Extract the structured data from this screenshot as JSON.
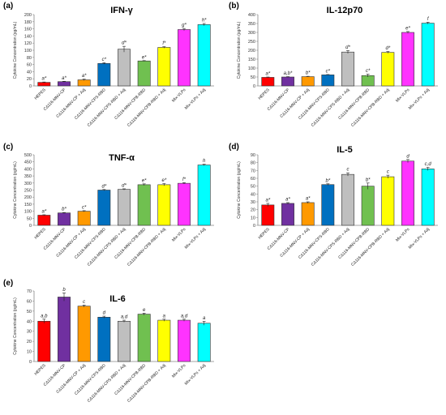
{
  "colors": [
    "#ff0000",
    "#7030a0",
    "#ff9900",
    "#0070c0",
    "#bfbfbf",
    "#70c050",
    "#ffff00",
    "#ff33ff",
    "#00ffff"
  ],
  "chart_data": [
    {
      "panel": "(a)",
      "title": "IFN-γ",
      "type": "bar",
      "ylabel": "Cytokine Concentration (pg/mL)",
      "ylim": [
        0,
        200
      ],
      "ticks": [
        0,
        20,
        40,
        60,
        80,
        100,
        120,
        140,
        160,
        180,
        200
      ],
      "categories": [
        "HEPES",
        "CΔ116-MNV-CP",
        "CΔ116-MNV-CP + Adj",
        "CΔ116-MNV-CPS-RBD",
        "CΔ116-MNV-CPS-RBD + Adj",
        "CΔ116-MNV-CPB-RBD",
        "CΔ116-MNV-CPB-RBD + Adj",
        "Mix-VLPs",
        "Mix-VLPs + Adj"
      ],
      "values": [
        10,
        12,
        17,
        63,
        103,
        70,
        108,
        158,
        172
      ],
      "errors": [
        1,
        1,
        2,
        2,
        8,
        1,
        2,
        3,
        3
      ],
      "letters": [
        "a*",
        "a*",
        "a*",
        "c*",
        "d*",
        "e*",
        "f*",
        "g*",
        "h*"
      ]
    },
    {
      "panel": "(b)",
      "title": "IL-12p70",
      "type": "bar",
      "ylabel": "Cytokine Concentration (pg/mL)",
      "ylim": [
        0,
        400
      ],
      "ticks": [
        0,
        50,
        100,
        150,
        200,
        250,
        300,
        350,
        400
      ],
      "categories": [
        "HEPES",
        "CΔ116-MNV-CP",
        "CΔ116-MNV-CP + Adj",
        "CΔ116-MNV-CPS-RBD",
        "CΔ116-MNV-CPS-RBD + Adj",
        "CΔ116-MNV-CPB-RBD",
        "CΔ116-MNV-CPB-RBD + Adj",
        "Mix-VLPs",
        "Mix-VLPs + Adj"
      ],
      "values": [
        48,
        50,
        52,
        62,
        190,
        58,
        188,
        300,
        352
      ],
      "errors": [
        2,
        2,
        2,
        2,
        8,
        8,
        5,
        5,
        5
      ],
      "letters": [
        "a*",
        "a,b*",
        "b*",
        "c*",
        "d*",
        "c*",
        "d*",
        "e*",
        "f"
      ]
    },
    {
      "panel": "(c)",
      "title": "TNF-α",
      "type": "bar",
      "ylabel": "Cytokine Concentration (pg/mL)",
      "ylim": [
        0,
        500
      ],
      "ticks": [
        0,
        50,
        100,
        150,
        200,
        250,
        300,
        350,
        400,
        450,
        500
      ],
      "categories": [
        "HEPES",
        "CΔ116-MNV-CP",
        "CΔ116-MNV-CP + Adj",
        "CΔ116-MNV-CPS-RBD",
        "CΔ116-MNV-CPS-RBD + Adj",
        "CΔ116-MNV-CPB-RBD",
        "CΔ116-MNV-CPB-RBD + Adj",
        "Mix-VLPs",
        "Mix-VLPs + Adj"
      ],
      "values": [
        72,
        88,
        100,
        250,
        255,
        288,
        288,
        298,
        428
      ],
      "errors": [
        3,
        3,
        4,
        4,
        4,
        6,
        8,
        5,
        5
      ],
      "letters": [
        "a*",
        "b*",
        "c*",
        "d*",
        "d*",
        "e*",
        "e*",
        "f*",
        "h"
      ]
    },
    {
      "panel": "(d)",
      "title": "IL-5",
      "type": "bar",
      "ylabel": "Cytokine Concentration (pg/mL)",
      "ylim": [
        0,
        90
      ],
      "ticks": [
        0,
        10,
        20,
        30,
        40,
        50,
        60,
        70,
        80,
        90
      ],
      "categories": [
        "HEPES",
        "CΔ116-MNV-CP",
        "CΔ116-MNV-CP + Adj",
        "CΔ116-MNV-CPS-RBD",
        "CΔ116-MNV-CPS-RBD + Adj",
        "CΔ116-MNV-CPB-RBD",
        "CΔ116-MNV-CPB-RBD + Adj",
        "Mix-VLPs",
        "Mix-VLPs + Adj"
      ],
      "values": [
        26,
        28,
        29,
        52,
        65,
        50,
        62,
        82,
        72
      ],
      "errors": [
        2,
        1,
        1,
        1,
        2,
        4,
        2,
        2,
        2
      ],
      "letters": [
        "a*",
        "a*",
        "a*",
        "b*",
        "c",
        "b*",
        "c",
        "d",
        "c,d"
      ]
    },
    {
      "panel": "(e)",
      "title": "IL-6",
      "type": "bar",
      "ylabel": "Cytokine Concentration (pg/mL)",
      "ylim": [
        0,
        70
      ],
      "ticks": [
        0,
        10,
        20,
        30,
        40,
        50,
        60,
        70
      ],
      "categories": [
        "HEPES",
        "CΔ116-MNV-CP",
        "CΔ116-MNV-CP + Adj",
        "CΔ116-MNV-CPS-RBD",
        "CΔ116-MNV-CPS-RBD + Adj",
        "CΔ116-MNV-CPB-RBD",
        "CΔ116-MNV-CPB-RBD + Adj",
        "Mix-VLPs",
        "Mix-VLPs + Adj"
      ],
      "values": [
        40,
        64,
        55,
        44,
        40,
        47,
        41,
        41,
        38
      ],
      "errors": [
        2,
        4,
        1,
        1,
        1,
        1,
        1,
        1,
        2
      ],
      "letters": [
        "a,b",
        "b",
        "c",
        "d",
        "a,d",
        "e",
        "a",
        "a,d",
        "a"
      ]
    }
  ]
}
